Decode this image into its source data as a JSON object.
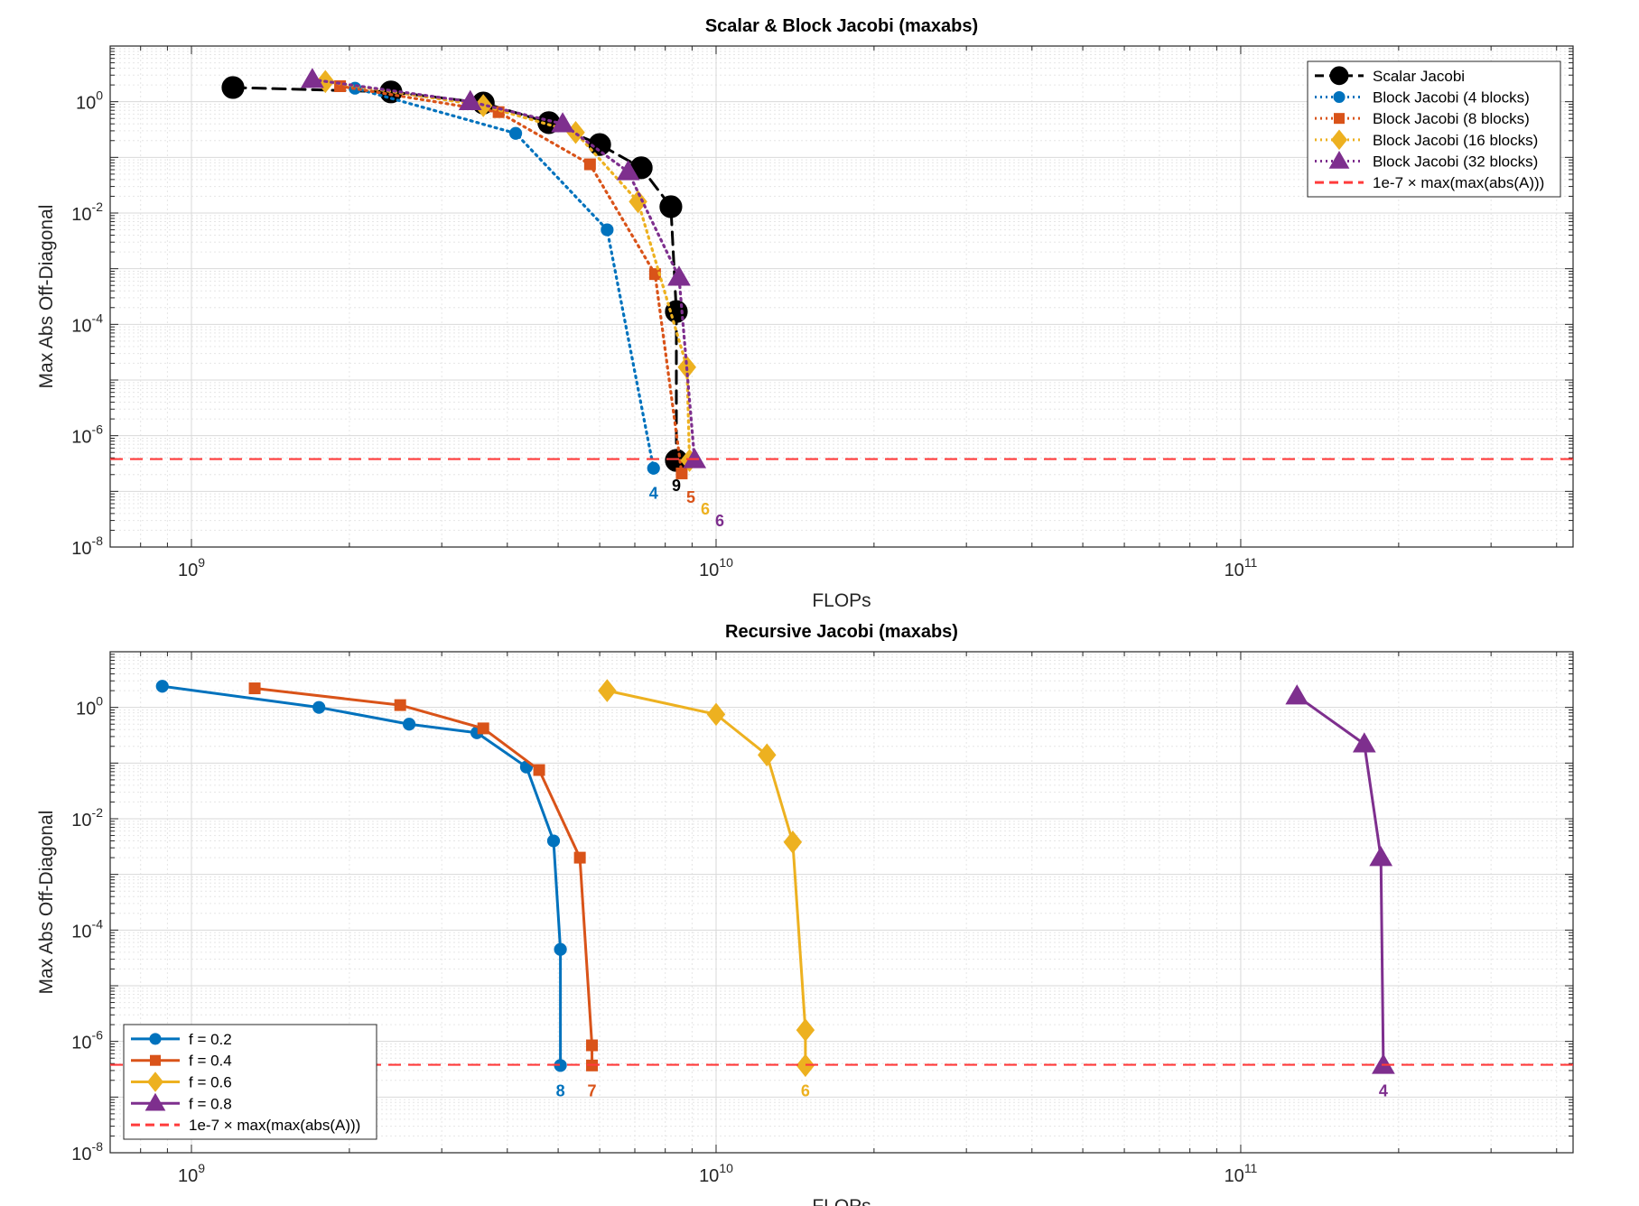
{
  "chart_data": [
    {
      "type": "line",
      "title": "Scalar & Block Jacobi (maxabs)",
      "xlabel": "FLOPs",
      "ylabel": "Max Abs Off-Diagonal",
      "xscale": "log",
      "yscale": "log",
      "xlim": [
        700000000.0,
        430000000000.0
      ],
      "ylim": [
        1e-08,
        10
      ],
      "xticks": [
        1000000000.0,
        10000000000.0,
        100000000000.0
      ],
      "xtick_labels": [
        {
          "base": "10",
          "exp": "9"
        },
        {
          "base": "10",
          "exp": "10"
        },
        {
          "base": "10",
          "exp": "11"
        }
      ],
      "yticks": [
        1e-08,
        1e-06,
        0.0001,
        0.01,
        1
      ],
      "ytick_labels": [
        {
          "base": "10",
          "exp": "-8"
        },
        {
          "base": "10",
          "exp": "-6"
        },
        {
          "base": "10",
          "exp": "-4"
        },
        {
          "base": "10",
          "exp": "-2"
        },
        {
          "base": "10",
          "exp": "0"
        }
      ],
      "grid": true,
      "minor_grid": true,
      "legend_position": "top-right",
      "series": [
        {
          "name": "Scalar Jacobi",
          "color": "#000000",
          "style": "dashed",
          "marker": "circle",
          "x": [
            1200000000.0,
            2400000000.0,
            3600000000.0,
            4800000000.0,
            6000000000.0,
            7200000000.0,
            8200000000.0,
            8400000000.0,
            8400000000.0
          ],
          "y": [
            1.8,
            1.5,
            0.95,
            0.42,
            0.17,
            0.065,
            0.013,
            0.00017,
            3.6e-07
          ],
          "end_label": "9"
        },
        {
          "name": "Block Jacobi (4 blocks)",
          "color": "#0072BD",
          "style": "dotted",
          "marker": "circle",
          "x": [
            2050000000.0,
            4150000000.0,
            6200000000.0,
            7600000000.0
          ],
          "y": [
            1.75,
            0.27,
            0.005,
            2.6e-07
          ],
          "end_label": "4"
        },
        {
          "name": "Block Jacobi (8 blocks)",
          "color": "#D95319",
          "style": "dotted",
          "marker": "square",
          "x": [
            1920000000.0,
            3850000000.0,
            5750000000.0,
            7650000000.0,
            8600000000.0
          ],
          "y": [
            1.9,
            0.65,
            0.075,
            0.0008,
            2.1e-07
          ],
          "end_label": "5"
        },
        {
          "name": "Block Jacobi (16 blocks)",
          "color": "#EDB120",
          "style": "dotted",
          "marker": "diamond",
          "x": [
            1800000000.0,
            3600000000.0,
            5400000000.0,
            7100000000.0,
            8800000000.0,
            8900000000.0
          ],
          "y": [
            2.3,
            0.85,
            0.28,
            0.016,
            1.7e-05,
            3.6e-07
          ],
          "end_label": "6"
        },
        {
          "name": "Block Jacobi (32 blocks)",
          "color": "#7E2F8E",
          "style": "dotted",
          "marker": "triangle",
          "x": [
            1700000000.0,
            3400000000.0,
            5100000000.0,
            6800000000.0,
            8500000000.0,
            9100000000.0
          ],
          "y": [
            2.5,
            1.0,
            0.4,
            0.055,
            0.0007,
            3.7e-07
          ],
          "end_label": "6"
        },
        {
          "name": "1e-7 × max(max(abs(A)))",
          "color": "#FF3B3B",
          "style": "dashed",
          "marker": "none",
          "threshold": 3.8e-07
        }
      ]
    },
    {
      "type": "line",
      "title": "Recursive Jacobi (maxabs)",
      "xlabel": "FLOPs",
      "ylabel": "Max Abs Off-Diagonal",
      "xscale": "log",
      "yscale": "log",
      "xlim": [
        700000000.0,
        430000000000.0
      ],
      "ylim": [
        1e-08,
        10
      ],
      "xticks": [
        1000000000.0,
        10000000000.0,
        100000000000.0
      ],
      "xtick_labels": [
        {
          "base": "10",
          "exp": "9"
        },
        {
          "base": "10",
          "exp": "10"
        },
        {
          "base": "10",
          "exp": "11"
        }
      ],
      "yticks": [
        1e-08,
        1e-06,
        0.0001,
        0.01,
        1
      ],
      "ytick_labels": [
        {
          "base": "10",
          "exp": "-8"
        },
        {
          "base": "10",
          "exp": "-6"
        },
        {
          "base": "10",
          "exp": "-4"
        },
        {
          "base": "10",
          "exp": "-2"
        },
        {
          "base": "10",
          "exp": "0"
        }
      ],
      "grid": true,
      "minor_grid": true,
      "legend_position": "bottom-left",
      "series": [
        {
          "name": "f = 0.2",
          "color": "#0072BD",
          "style": "solid",
          "marker": "circle",
          "x": [
            880000000.0,
            1750000000.0,
            2600000000.0,
            3500000000.0,
            4350000000.0,
            4900000000.0,
            5050000000.0,
            5050000000.0
          ],
          "y": [
            2.4,
            1.0,
            0.5,
            0.35,
            0.085,
            0.004,
            4.5e-05,
            3.7e-07
          ],
          "end_label": "8"
        },
        {
          "name": "f = 0.4",
          "color": "#D95319",
          "style": "solid",
          "marker": "square",
          "x": [
            1320000000.0,
            2500000000.0,
            3600000000.0,
            4600000000.0,
            5500000000.0,
            5800000000.0,
            5800000000.0
          ],
          "y": [
            2.2,
            1.1,
            0.42,
            0.075,
            0.002,
            8.5e-07,
            3.7e-07
          ],
          "end_label": "7"
        },
        {
          "name": "f = 0.6",
          "color": "#EDB120",
          "style": "solid",
          "marker": "diamond",
          "x": [
            6200000000.0,
            10000000000.0,
            12500000000.0,
            14000000000.0,
            14800000000.0,
            14800000000.0
          ],
          "y": [
            2.0,
            0.75,
            0.14,
            0.0038,
            1.6e-06,
            3.7e-07
          ],
          "end_label": "6"
        },
        {
          "name": "f = 0.8",
          "color": "#7E2F8E",
          "style": "solid",
          "marker": "triangle",
          "x": [
            128000000000.0,
            172000000000.0,
            185000000000.0,
            187000000000.0
          ],
          "y": [
            1.6,
            0.22,
            0.002,
            3.7e-07
          ],
          "end_label": "4"
        },
        {
          "name": "1e-7 × max(max(abs(A)))",
          "color": "#FF3B3B",
          "style": "dashed",
          "marker": "none",
          "threshold": 3.8e-07
        }
      ]
    }
  ]
}
